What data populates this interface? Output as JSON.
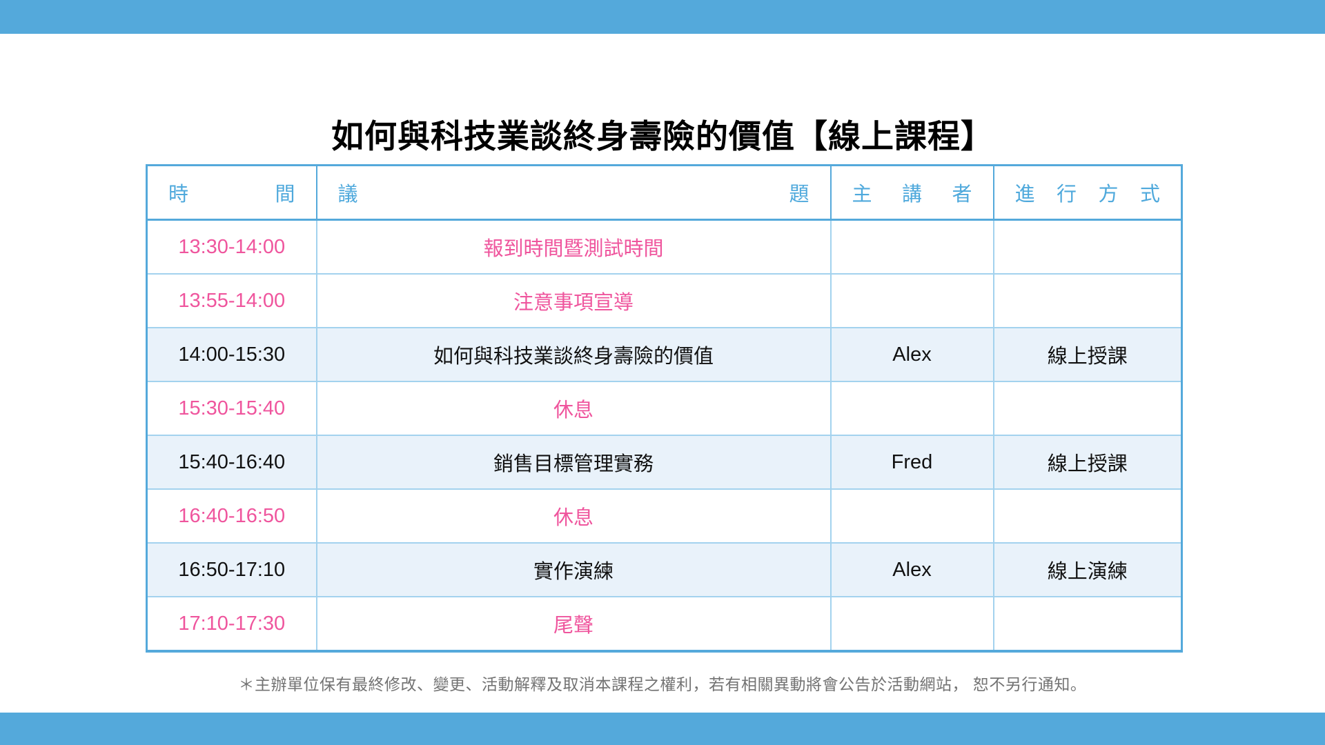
{
  "page": {
    "title": "如何與科技業談終身壽險的價值【線上課程】",
    "footnote": "＊主辦單位保有最終修改、變更、活動解釋及取消本課程之權利，若有相關異動將會公告於活動網站， 恕不另行通知。"
  },
  "colors": {
    "accent_blue": "#54A9DB",
    "header_text_blue": "#4FA9DC",
    "inner_line_blue": "#A3D2EE",
    "highlight_row_bg": "#E9F2FA",
    "pink": "#EF559D",
    "body_text": "#111111",
    "footnote_gray": "#737373"
  },
  "table": {
    "headers": [
      {
        "id": "time",
        "label": "時間"
      },
      {
        "id": "topic",
        "label": "議題"
      },
      {
        "id": "speaker",
        "label": "主講者"
      },
      {
        "id": "method",
        "label": "進行方式"
      }
    ],
    "rows": [
      {
        "time": "13:30-14:00",
        "topic": "報到時間暨測試時間",
        "speaker": "",
        "method": "",
        "style": "pink"
      },
      {
        "time": "13:55-14:00",
        "topic": "注意事項宣導",
        "speaker": "",
        "method": "",
        "style": "pink"
      },
      {
        "time": "14:00-15:30",
        "topic": "如何與科技業談終身壽險的價值",
        "speaker": "Alex",
        "method": "線上授課",
        "style": "highlight"
      },
      {
        "time": "15:30-15:40",
        "topic": "休息",
        "speaker": "",
        "method": "",
        "style": "pink"
      },
      {
        "time": "15:40-16:40",
        "topic": "銷售目標管理實務",
        "speaker": "Fred",
        "method": "線上授課",
        "style": "highlight"
      },
      {
        "time": "16:40-16:50",
        "topic": "休息",
        "speaker": "",
        "method": "",
        "style": "pink"
      },
      {
        "time": "16:50-17:10",
        "topic": "實作演練",
        "speaker": "Alex",
        "method": "線上演練",
        "style": "highlight"
      },
      {
        "time": "17:10-17:30",
        "topic": "尾聲",
        "speaker": "",
        "method": "",
        "style": "pink"
      }
    ]
  }
}
